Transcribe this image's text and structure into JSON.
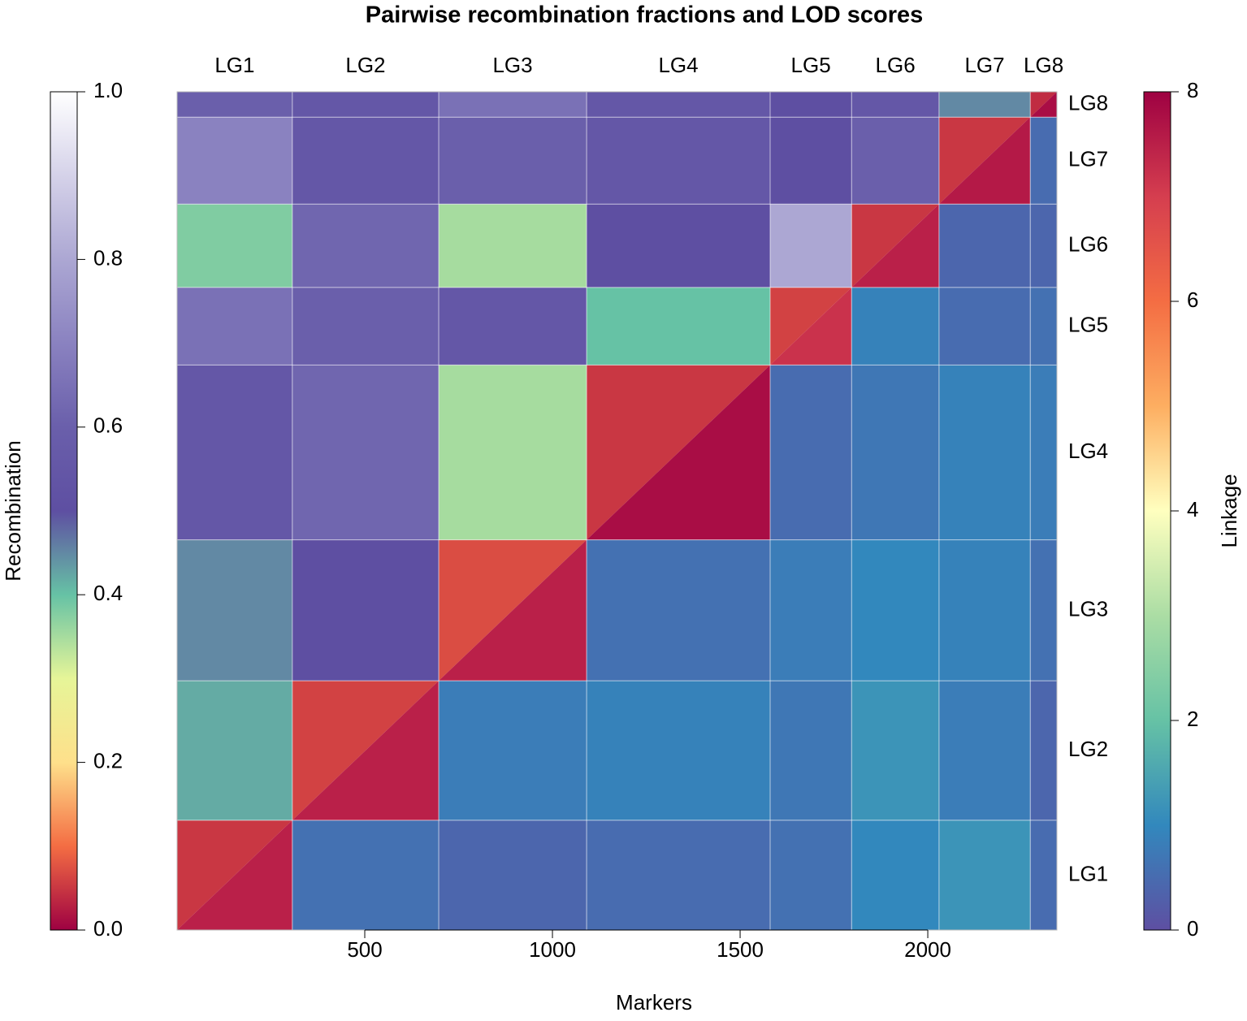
{
  "chart_data": {
    "type": "heatmap",
    "title": "Pairwise recombination fractions and LOD scores",
    "xlabel": "Markers",
    "groups": [
      "LG1",
      "LG2",
      "LG3",
      "LG4",
      "LG5",
      "LG6",
      "LG7",
      "LG8"
    ],
    "bins": [
      0,
      307,
      697,
      1091,
      1580,
      1797,
      2030,
      2273,
      2344
    ],
    "xlim": [
      0,
      2344
    ],
    "ylim": [
      0,
      2344
    ],
    "xticks": [
      500,
      1000,
      1500,
      2000
    ],
    "series": [
      {
        "name": "Recombination",
        "colors": [
          "#9e0142",
          "#f46d43",
          "#fee08b",
          "#e6f598",
          "#66c2a5",
          "#5e4fa2",
          "#6a5fab",
          "#8a82c0",
          "#aca7d3",
          "#d5d2e9",
          "#ffffff"
        ],
        "lim": [
          0,
          1
        ],
        "ticks": [
          {
            "value": 0,
            "label": "0.0"
          },
          0.2,
          0.4,
          0.6,
          0.8,
          {
            "value": 1,
            "label": "1.0"
          }
        ],
        "values": [
          [
            0.05,
            null,
            null,
            null,
            null,
            null,
            null,
            null
          ],
          [
            0.42,
            0.06,
            null,
            null,
            null,
            null,
            null,
            null
          ],
          [
            0.45,
            0.5,
            0.07,
            null,
            null,
            null,
            null,
            null
          ],
          [
            0.55,
            0.62,
            0.35,
            0.05,
            null,
            null,
            null,
            null
          ],
          [
            0.65,
            0.6,
            0.55,
            0.4,
            0.06,
            null,
            null,
            null
          ],
          [
            0.38,
            0.62,
            0.35,
            0.5,
            0.8,
            0.05,
            null,
            null
          ],
          [
            0.7,
            0.55,
            0.6,
            0.55,
            0.5,
            0.6,
            0.05,
            null
          ],
          [
            0.6,
            0.55,
            0.65,
            0.55,
            0.5,
            0.55,
            0.45,
            0.04
          ]
        ]
      },
      {
        "name": "Linkage",
        "colors": [
          "#5e4fa2",
          "#3288bd",
          "#66c2a5",
          "#abdda4",
          "#ffffbf",
          "#fdae61",
          "#f46d43",
          "#d53e4f",
          "#9e0142"
        ],
        "lim": [
          0,
          8
        ],
        "ticks": [
          0,
          2,
          4,
          6,
          8
        ],
        "values": [
          [
            7.5,
            0.6,
            0.4,
            0.5,
            0.6,
            1.0,
            1.2,
            0.5
          ],
          [
            null,
            7.5,
            0.8,
            0.9,
            0.7,
            1.2,
            0.8,
            0.4
          ],
          [
            null,
            null,
            7.5,
            0.6,
            0.8,
            1.0,
            0.9,
            0.6
          ],
          [
            null,
            null,
            null,
            7.8,
            0.5,
            0.7,
            0.9,
            0.8
          ],
          [
            null,
            null,
            null,
            null,
            7.2,
            0.9,
            0.5,
            0.6
          ],
          [
            null,
            null,
            null,
            null,
            null,
            7.5,
            0.4,
            0.4
          ],
          [
            null,
            null,
            null,
            null,
            null,
            null,
            7.6,
            0.5
          ],
          [
            null,
            null,
            null,
            null,
            null,
            null,
            null,
            7.8
          ]
        ]
      }
    ]
  }
}
